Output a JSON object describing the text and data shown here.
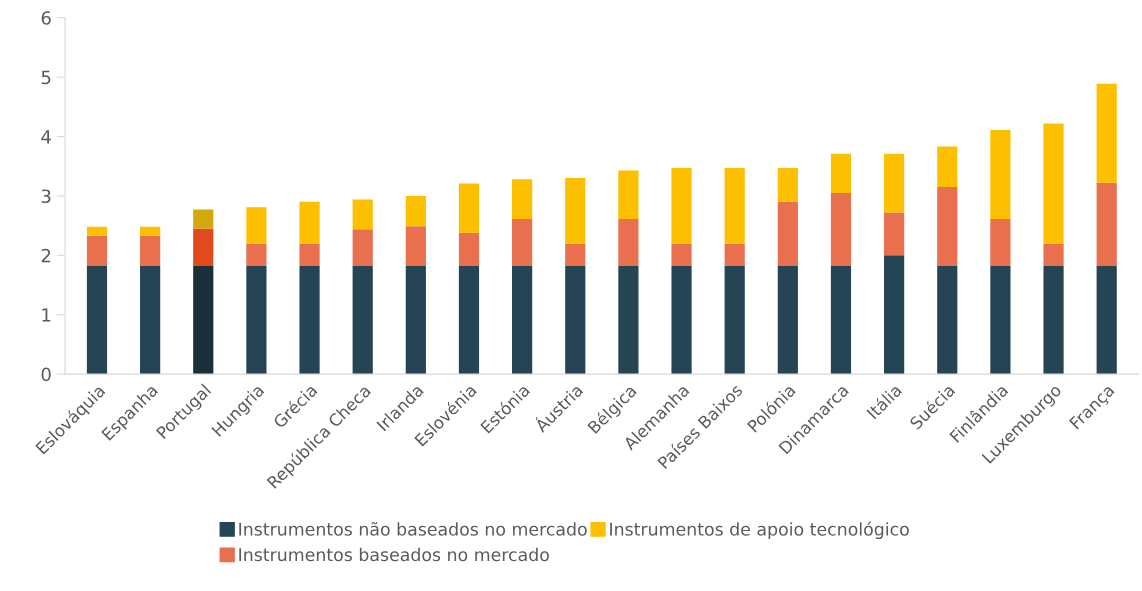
{
  "chart_data": {
    "type": "bar",
    "stacked": true,
    "categories": [
      "Eslováquia",
      "Espanha",
      "Portugal",
      "Hungria",
      "Grécia",
      "República Checa",
      "Irlanda",
      "Eslovénia",
      "Estónia",
      "Áustria",
      "Bélgica",
      "Alemanha",
      "Países Baixos",
      "Polónia",
      "Dinamarca",
      "Itália",
      "Suécia",
      "Finlândia",
      "Luxemburgo",
      "França"
    ],
    "series": [
      {
        "name": "Instrumentos não baseados no mercado",
        "color": "#254554",
        "colors": [
          "#254554",
          "#254554",
          "#1b2f38",
          "#254554",
          "#254554",
          "#254554",
          "#254554",
          "#254554",
          "#254554",
          "#254554",
          "#254554",
          "#254554",
          "#254554",
          "#254554",
          "#254554",
          "#254554",
          "#254554",
          "#254554",
          "#254554",
          "#254554"
        ],
        "values": [
          1.82,
          1.82,
          1.82,
          1.82,
          1.82,
          1.82,
          1.82,
          1.82,
          1.82,
          1.82,
          1.82,
          1.82,
          1.82,
          1.82,
          1.82,
          2.0,
          1.82,
          1.82,
          1.82,
          1.82
        ]
      },
      {
        "name": "Instrumentos baseados no mercado",
        "color": "#e8704f",
        "colors": [
          "#e8704f",
          "#e8704f",
          "#e04a1d",
          "#e8704f",
          "#e8704f",
          "#e8704f",
          "#e8704f",
          "#e8704f",
          "#e8704f",
          "#e8704f",
          "#e8704f",
          "#e8704f",
          "#e8704f",
          "#e8704f",
          "#e8704f",
          "#e8704f",
          "#e8704f",
          "#e8704f",
          "#e8704f",
          "#e8704f"
        ],
        "values": [
          0.51,
          0.51,
          0.63,
          0.38,
          0.38,
          0.62,
          0.67,
          0.56,
          0.79,
          0.38,
          0.79,
          0.38,
          0.38,
          1.08,
          1.23,
          0.72,
          1.33,
          0.79,
          0.38,
          1.4
        ]
      },
      {
        "name": "Instrumentos de apoio tecnológico",
        "color": "#fdc000",
        "colors": [
          "#fdc000",
          "#fdc000",
          "#d4a80c",
          "#fdc000",
          "#fdc000",
          "#fdc000",
          "#fdc000",
          "#fdc000",
          "#fdc000",
          "#fdc000",
          "#fdc000",
          "#fdc000",
          "#fdc000",
          "#fdc000",
          "#fdc000",
          "#fdc000",
          "#fdc000",
          "#fdc000",
          "#fdc000",
          "#fdc000"
        ],
        "values": [
          0.15,
          0.15,
          0.32,
          0.61,
          0.7,
          0.5,
          0.51,
          0.83,
          0.67,
          1.1,
          0.82,
          1.27,
          1.27,
          0.57,
          0.66,
          0.99,
          0.68,
          1.5,
          2.02,
          1.67
        ]
      }
    ],
    "ylim": [
      0,
      6
    ],
    "yticks": [
      0,
      1,
      2,
      3,
      4,
      5,
      6
    ],
    "grid": false,
    "legend": "bottom"
  }
}
